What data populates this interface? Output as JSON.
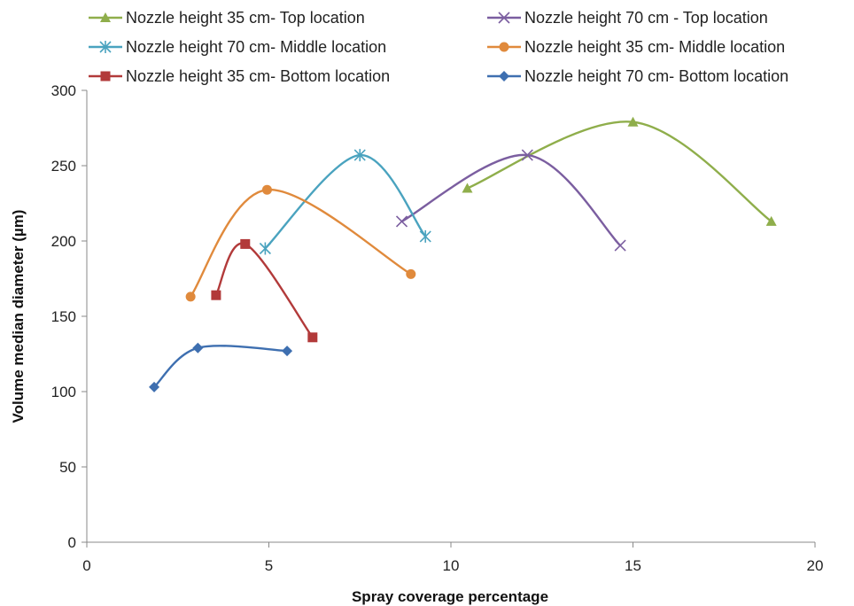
{
  "chart_data": {
    "type": "scatter",
    "title": "",
    "xlabel": "Spray coverage percentage",
    "ylabel": "Volume median diameter (µm)",
    "xlim": [
      0,
      20
    ],
    "ylim": [
      0,
      300
    ],
    "xticks": [
      0,
      5,
      10,
      15,
      20
    ],
    "yticks": [
      0,
      50,
      100,
      150,
      200,
      250,
      300
    ],
    "grid": false,
    "legend_position": "top",
    "smooth_lines": true,
    "series": [
      {
        "name": "Nozzle height 35 cm- Top location",
        "color": "#8fae4b",
        "marker": "triangle",
        "points": [
          [
            10.45,
            235
          ],
          [
            15.0,
            279
          ],
          [
            18.8,
            213
          ]
        ]
      },
      {
        "name": "Nozzle height 70 cm - Top location",
        "color": "#7b5ea0",
        "marker": "x",
        "points": [
          [
            8.65,
            213
          ],
          [
            12.1,
            257
          ],
          [
            14.65,
            197
          ]
        ]
      },
      {
        "name": "Nozzle height 70 cm- Middle location",
        "color": "#4aa3bf",
        "marker": "star",
        "points": [
          [
            4.9,
            195
          ],
          [
            7.5,
            257
          ],
          [
            9.3,
            203
          ]
        ]
      },
      {
        "name": "Nozzle height 35 cm- Middle location",
        "color": "#e08a3c",
        "marker": "circle",
        "points": [
          [
            2.85,
            163
          ],
          [
            4.95,
            234
          ],
          [
            8.9,
            178
          ]
        ]
      },
      {
        "name": "Nozzle height 35 cm- Bottom location",
        "color": "#b23a3a",
        "marker": "square",
        "points": [
          [
            3.55,
            164
          ],
          [
            4.35,
            198
          ],
          [
            6.2,
            136
          ]
        ]
      },
      {
        "name": "Nozzle height 70 cm- Bottom location",
        "color": "#3e6fb0",
        "marker": "diamond",
        "points": [
          [
            1.85,
            103
          ],
          [
            3.05,
            129
          ],
          [
            5.5,
            127
          ]
        ]
      }
    ]
  }
}
